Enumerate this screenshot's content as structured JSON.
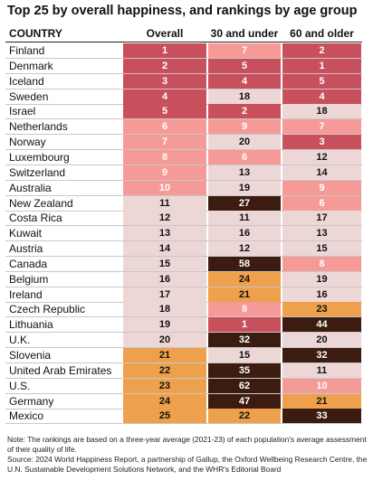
{
  "title": "Top 25 by overall happiness, and rankings by age group",
  "chart_data": {
    "type": "table",
    "columns": [
      "COUNTRY",
      "Overall",
      "30 and under",
      "60 and older"
    ],
    "rows": [
      {
        "country": "Finland",
        "overall": 1,
        "under30": 7,
        "over60": 2
      },
      {
        "country": "Denmark",
        "overall": 2,
        "under30": 5,
        "over60": 1
      },
      {
        "country": "Iceland",
        "overall": 3,
        "under30": 4,
        "over60": 5
      },
      {
        "country": "Sweden",
        "overall": 4,
        "under30": 18,
        "over60": 4
      },
      {
        "country": "Israel",
        "overall": 5,
        "under30": 2,
        "over60": 18
      },
      {
        "country": "Netherlands",
        "overall": 6,
        "under30": 9,
        "over60": 7
      },
      {
        "country": "Norway",
        "overall": 7,
        "under30": 20,
        "over60": 3
      },
      {
        "country": "Luxembourg",
        "overall": 8,
        "under30": 6,
        "over60": 12
      },
      {
        "country": "Switzerland",
        "overall": 9,
        "under30": 13,
        "over60": 14
      },
      {
        "country": "Australia",
        "overall": 10,
        "under30": 19,
        "over60": 9
      },
      {
        "country": "New Zealand",
        "overall": 11,
        "under30": 27,
        "over60": 6
      },
      {
        "country": "Costa Rica",
        "overall": 12,
        "under30": 11,
        "over60": 17
      },
      {
        "country": "Kuwait",
        "overall": 13,
        "under30": 16,
        "over60": 13
      },
      {
        "country": "Austria",
        "overall": 14,
        "under30": 12,
        "over60": 15
      },
      {
        "country": "Canada",
        "overall": 15,
        "under30": 58,
        "over60": 8
      },
      {
        "country": "Belgium",
        "overall": 16,
        "under30": 24,
        "over60": 19
      },
      {
        "country": "Ireland",
        "overall": 17,
        "under30": 21,
        "over60": 16
      },
      {
        "country": "Czech Republic",
        "overall": 18,
        "under30": 8,
        "over60": 23
      },
      {
        "country": "Lithuania",
        "overall": 19,
        "under30": 1,
        "over60": 44
      },
      {
        "country": "U.K.",
        "overall": 20,
        "under30": 32,
        "over60": 20
      },
      {
        "country": "Slovenia",
        "overall": 21,
        "under30": 15,
        "over60": 32
      },
      {
        "country": "United Arab Emirates",
        "overall": 22,
        "under30": 35,
        "over60": 11
      },
      {
        "country": "U.S.",
        "overall": 23,
        "under30": 62,
        "over60": 10
      },
      {
        "country": "Germany",
        "overall": 24,
        "under30": 47,
        "over60": 21
      },
      {
        "country": "Mexico",
        "overall": 25,
        "under30": 22,
        "over60": 33
      }
    ],
    "color_scale": {
      "1-5": "#c84f5c",
      "6-10": "#f59a96",
      "11-20": "#ecd6d6",
      "21-25": "#eea04c",
      "26+": "#3c1c10"
    }
  },
  "note": "Note: The rankings are based on a three-year average (2021-23) of each population's average assessment of their quality of life.",
  "source": "Source: 2024 World Happiness Report, a partnership of Gallup, the Oxford Wellbeing Research Centre, the U.N. Sustainable Development Solutions Network, and the WHR's Editorial Board"
}
